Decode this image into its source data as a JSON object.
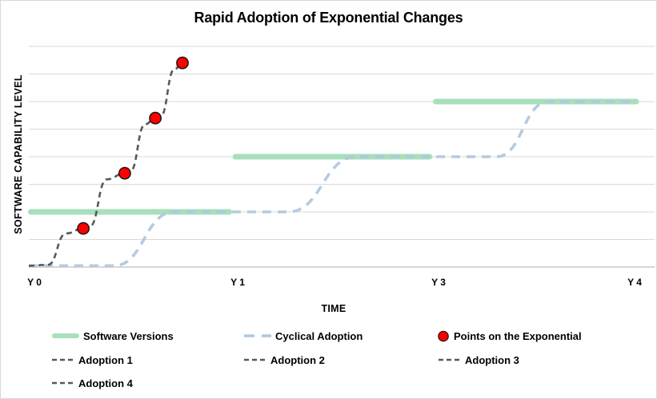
{
  "title": "Rapid Adoption of Exponential Changes",
  "colors": {
    "green": "#A8DFBC",
    "blue": "#AFC7DE",
    "dark_dash": "#595959",
    "red": "#FF0000",
    "red_outline": "#151515",
    "grid": "#D9D9D9",
    "axis": "#BFBFBF",
    "text": "#000000",
    "frame_border": "#D9D9D9"
  },
  "legend": {
    "items": [
      {
        "label": "Software Versions",
        "swatch": "green-line"
      },
      {
        "label": "Cyclical Adoption",
        "swatch": "blue-dash"
      },
      {
        "label": "Points on the Exponential",
        "swatch": "red-dot"
      },
      {
        "label": "Adoption 1",
        "swatch": "gray-dash"
      },
      {
        "label": "Adoption 2",
        "swatch": "gray-dash"
      },
      {
        "label": "Adoption 3",
        "swatch": "gray-dash"
      },
      {
        "label": "Adoption 4",
        "swatch": "gray-dash"
      }
    ]
  },
  "chart_data": {
    "type": "line",
    "title": "Rapid Adoption of Exponential Changes",
    "xlabel": "TIME",
    "ylabel": "SOFTWARE CAPABILITY LEVEL",
    "x_ticks": [
      {
        "label": "Y 0",
        "pos": 0
      },
      {
        "label": "Y 1",
        "pos": 1
      },
      {
        "label": "Y 3",
        "pos": 2
      },
      {
        "label": "Y 4",
        "pos": 3
      }
    ],
    "x_range": [
      0,
      3
    ],
    "y_range": [
      0,
      8
    ],
    "grid": "horizontal gridlines every 1 unit",
    "legend_position": "bottom",
    "series": [
      {
        "name": "Software Versions",
        "type": "segments",
        "style": "thick-green",
        "segments": [
          {
            "x": [
              0.01,
              0.99
            ],
            "y": 2
          },
          {
            "x": [
              1.02,
              1.98
            ],
            "y": 4
          },
          {
            "x": [
              2.01,
              3.0
            ],
            "y": 6
          }
        ]
      },
      {
        "name": "Cyclical Adoption",
        "type": "smooth",
        "style": "blue-dash",
        "points": [
          [
            0,
            0.05
          ],
          [
            0.42,
            0.05
          ],
          [
            0.72,
            2
          ],
          [
            1.28,
            2
          ],
          [
            1.62,
            4
          ],
          [
            2.31,
            4
          ],
          [
            2.57,
            6
          ],
          [
            3.0,
            6
          ]
        ]
      },
      {
        "name": "Adoption 1",
        "type": "smooth",
        "style": "gray-dash",
        "points": [
          [
            0,
            0.05
          ],
          [
            0.095,
            0.08
          ],
          [
            0.185,
            1.22
          ],
          [
            0.269,
            1.4
          ]
        ]
      },
      {
        "name": "Adoption 2",
        "type": "smooth",
        "style": "gray-dash",
        "points": [
          [
            0.269,
            1.4
          ],
          [
            0.3,
            1.46
          ],
          [
            0.385,
            3.18
          ],
          [
            0.474,
            3.4
          ]
        ]
      },
      {
        "name": "Adoption 3",
        "type": "smooth",
        "style": "gray-dash",
        "points": [
          [
            0.474,
            3.4
          ],
          [
            0.5,
            3.46
          ],
          [
            0.575,
            5.18
          ],
          [
            0.625,
            5.4
          ]
        ]
      },
      {
        "name": "Adoption 4",
        "type": "smooth",
        "style": "gray-dash",
        "points": [
          [
            0.625,
            5.4
          ],
          [
            0.65,
            5.46
          ],
          [
            0.72,
            7.18
          ],
          [
            0.759,
            7.4
          ]
        ]
      }
    ],
    "points_series": {
      "name": "Points on the Exponential",
      "style": "red-dot",
      "points": [
        [
          0.269,
          1.4
        ],
        [
          0.474,
          3.4
        ],
        [
          0.625,
          5.4
        ],
        [
          0.759,
          7.4
        ]
      ]
    }
  }
}
